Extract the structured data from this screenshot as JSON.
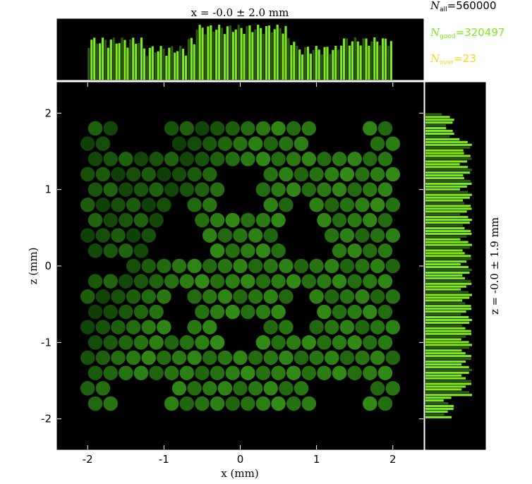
{
  "chart_data": {
    "type": "heatmap",
    "title": "",
    "xlabel": "x (mm)",
    "ylabel": "z (mm)",
    "xlim": [
      -2.4,
      2.4
    ],
    "zlim": [
      -2.4,
      2.4
    ],
    "x_ticks": [
      "-2",
      "-1",
      "0",
      "1",
      "2"
    ],
    "z_ticks": [
      "2",
      "1",
      "0",
      "-1",
      "-2"
    ],
    "x_tick_values": [
      -2,
      -1,
      0,
      1,
      2
    ],
    "z_tick_values": [
      2,
      1,
      0,
      -1,
      -2
    ],
    "top_histogram_label": "x = -0.0 ± 2.0 mm",
    "side_histogram_label": "z = -0.0 ± 1.9 mm",
    "beam_extent_x": [
      -2.0,
      2.0
    ],
    "beam_extent_z": [
      -2.0,
      2.0
    ],
    "colors": {
      "background": "#000000",
      "spot": "#3f7a1e",
      "bar_bright": "#7ee81c",
      "bar_dark": "#2f5a12",
      "n_all_color": "#000000",
      "n_good_color": "#7ee81c",
      "n_over_color": "#ffd21e"
    }
  },
  "stats": {
    "n_all": {
      "symbol": "N",
      "sub": "all",
      "value": "=560000"
    },
    "n_good": {
      "symbol": "N",
      "sub": "good",
      "value": "=320497"
    },
    "n_over": {
      "symbol": "N",
      "sub": "over",
      "value": "=23"
    }
  }
}
